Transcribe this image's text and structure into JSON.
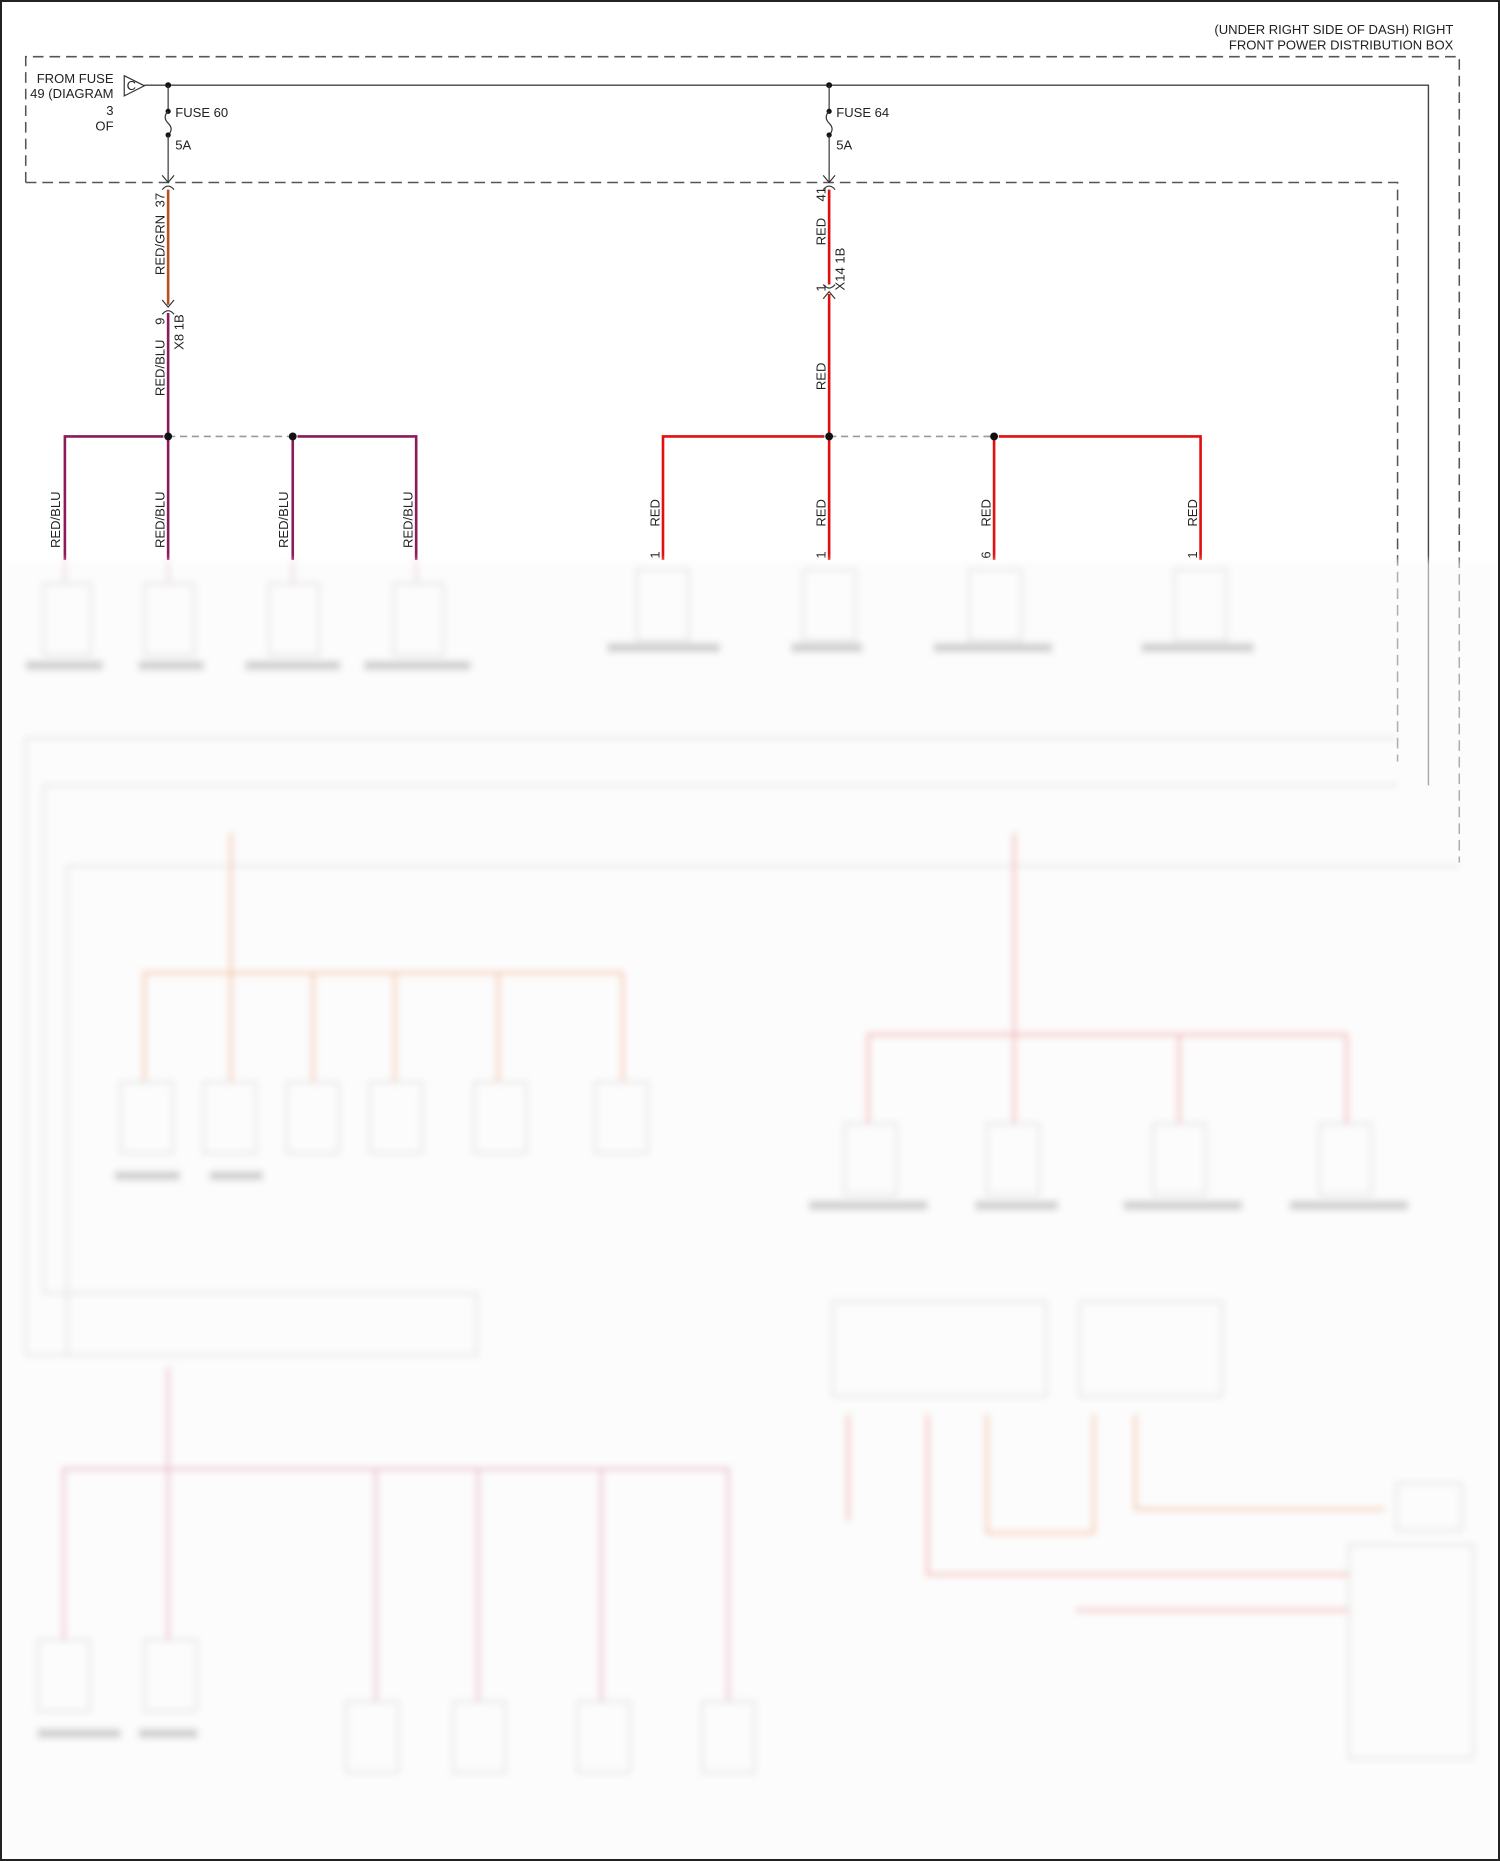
{
  "box_title": [
    "(UNDER RIGHT SIDE OF DASH) RIGHT",
    "FRONT POWER DISTRIBUTION BOX"
  ],
  "source": {
    "lines": [
      "FROM FUSE",
      "49 (DIAGRAM",
      "3",
      "OF"
    ],
    "connector_letter": "C"
  },
  "colors": {
    "red_grn": "#b5531b",
    "red_blu": "#8b1a5a",
    "red": "#e01010",
    "frame": "#555555"
  },
  "fuse_left": {
    "name": "FUSE 60",
    "rating": "5A",
    "pin": "37",
    "wire_upper": "RED/GRN",
    "connector_pin": "9",
    "connector": "X8 1B",
    "wire_lower": "RED/BLU",
    "branches": [
      {
        "wire": "RED/BLU",
        "pin": ""
      },
      {
        "wire": "RED/BLU",
        "pin": ""
      },
      {
        "wire": "RED/BLU",
        "pin": ""
      },
      {
        "wire": "RED/BLU",
        "pin": ""
      }
    ]
  },
  "fuse_right": {
    "name": "FUSE 64",
    "rating": "5A",
    "pin": "41",
    "wire_upper": "RED",
    "connector_pin": "1",
    "connector": "X14 1B",
    "wire_lower": "RED",
    "branches": [
      {
        "wire": "RED",
        "pin": "1"
      },
      {
        "wire": "RED",
        "pin": "1"
      },
      {
        "wire": "RED",
        "pin": "6"
      },
      {
        "wire": "RED",
        "pin": "1"
      }
    ]
  }
}
